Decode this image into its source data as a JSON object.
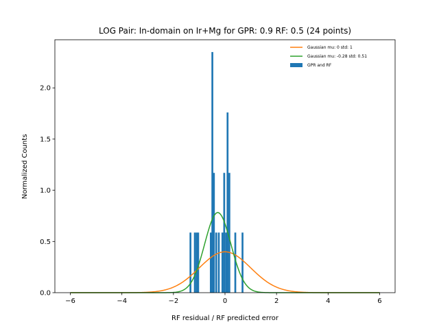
{
  "chart_data": {
    "type": "bar",
    "title": "LOG Pair: In-domain on Ir+Mg for GPR: 0.9 RF: 0.5 (24 points)",
    "xlabel": "RF residual / RF predicted error",
    "ylabel": "Normalized Counts",
    "xlim": [
      -6.6,
      6.6
    ],
    "ylim": [
      0,
      2.47
    ],
    "xticks": [
      -6,
      -4,
      -2,
      0,
      2,
      4,
      6
    ],
    "yticks": [
      0.0,
      0.5,
      1.0,
      1.5,
      2.0
    ],
    "xtick_labels": [
      "−6",
      "−4",
      "−2",
      "0",
      "2",
      "4",
      "6"
    ],
    "ytick_labels": [
      "0.0",
      "0.5",
      "1.0",
      "1.5",
      "2.0"
    ],
    "grid": false,
    "legend_position": "top-right",
    "histogram": {
      "name": "GPR and RF",
      "color": "#1f77b4",
      "bin_width": 0.071,
      "bins": [
        {
          "x": -1.34,
          "height": 0.587
        },
        {
          "x": -1.17,
          "height": 0.587
        },
        {
          "x": -1.1,
          "height": 0.587
        },
        {
          "x": -1.04,
          "height": 0.587
        },
        {
          "x": -0.55,
          "height": 0.587
        },
        {
          "x": -0.49,
          "height": 2.35
        },
        {
          "x": -0.43,
          "height": 1.17
        },
        {
          "x": -0.34,
          "height": 0.587
        },
        {
          "x": -0.24,
          "height": 0.587
        },
        {
          "x": -0.1,
          "height": 0.587
        },
        {
          "x": -0.03,
          "height": 1.17
        },
        {
          "x": 0.04,
          "height": 0.587
        },
        {
          "x": 0.1,
          "height": 1.76
        },
        {
          "x": 0.17,
          "height": 1.17
        },
        {
          "x": 0.4,
          "height": 0.587
        },
        {
          "x": 0.68,
          "height": 0.587
        }
      ]
    },
    "series": [
      {
        "name": "Gaussian mu: 0 std: 1",
        "type": "line",
        "color": "#ff7f0e",
        "mu": 0,
        "sigma": 1,
        "x_range": [
          -6,
          6
        ]
      },
      {
        "name": "Gaussian mu: -0.28 std: 0.51",
        "type": "line",
        "color": "#2ca02c",
        "mu": -0.28,
        "sigma": 0.51,
        "x_range": [
          -6,
          6
        ]
      }
    ]
  }
}
